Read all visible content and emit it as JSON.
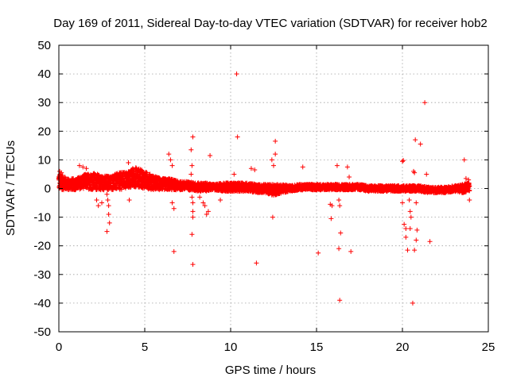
{
  "chart_data": {
    "type": "scatter",
    "title": "Day 169 of 2011, Sidereal Day-to-day VTEC variation (SDTVAR) for receiver hob2",
    "xlabel": "GPS time / hours",
    "ylabel": "SDTVAR / TECUs",
    "xlim": [
      0,
      25
    ],
    "ylim": [
      -50,
      50
    ],
    "xticks": [
      0,
      5,
      10,
      15,
      20,
      25
    ],
    "yticks": [
      -50,
      -40,
      -30,
      -20,
      -10,
      0,
      10,
      20,
      30,
      40,
      50
    ],
    "grid": true,
    "marker": "+",
    "color": "#ff0000",
    "band": {
      "x": [
        0,
        0.5,
        1,
        1.5,
        2,
        2.5,
        3,
        3.5,
        4,
        4.5,
        5,
        5.5,
        6,
        6.5,
        7,
        7.5,
        8,
        8.5,
        9,
        9.5,
        10,
        10.5,
        11,
        11.5,
        12,
        12.5,
        13,
        13.5,
        14,
        14.5,
        15,
        15.5,
        16,
        16.5,
        17,
        17.5,
        18,
        18.5,
        19,
        19.5,
        20,
        20.5,
        21,
        21.5,
        22,
        22.5,
        23,
        23.5,
        23.9
      ],
      "center": [
        2.5,
        1.5,
        1.5,
        2.5,
        2.5,
        2,
        2,
        2.5,
        3,
        4,
        3,
        2,
        1.5,
        1.5,
        1,
        1,
        0.5,
        0.5,
        0.5,
        0.5,
        0.5,
        0.5,
        0.5,
        0,
        0,
        -0.5,
        0,
        0,
        0.5,
        0.5,
        0.5,
        0.5,
        0.5,
        0.5,
        0.5,
        0.5,
        0,
        0,
        0,
        0,
        0,
        0,
        0,
        -0.5,
        -0.5,
        -0.5,
        0,
        0,
        0.5
      ],
      "halfwidth": [
        3,
        2,
        2,
        2.5,
        3,
        2.5,
        2.5,
        3,
        3,
        3.5,
        3,
        2.5,
        2,
        2,
        1.5,
        1.5,
        1.5,
        1.5,
        1,
        1.5,
        1.5,
        1.5,
        1.5,
        1.5,
        1.5,
        2,
        1.5,
        1,
        1,
        1,
        1,
        1,
        1,
        1,
        1,
        1,
        1,
        1,
        1,
        1,
        1,
        1,
        1,
        1,
        1,
        1,
        1,
        1.5,
        1.5
      ]
    },
    "outliers": [
      [
        0.05,
        6
      ],
      [
        0.1,
        4.5
      ],
      [
        0.15,
        5.5
      ],
      [
        1.2,
        8
      ],
      [
        1.4,
        7.5
      ],
      [
        1.6,
        7
      ],
      [
        2.2,
        -4
      ],
      [
        2.3,
        -6
      ],
      [
        2.5,
        -5
      ],
      [
        2.8,
        -2
      ],
      [
        2.85,
        -4
      ],
      [
        2.9,
        -6
      ],
      [
        2.9,
        -9
      ],
      [
        2.95,
        -12
      ],
      [
        2.8,
        -15
      ],
      [
        4.05,
        9
      ],
      [
        4.1,
        -4
      ],
      [
        4.3,
        7
      ],
      [
        6.4,
        12
      ],
      [
        6.5,
        10
      ],
      [
        6.6,
        8
      ],
      [
        6.6,
        -5
      ],
      [
        6.7,
        -7
      ],
      [
        6.7,
        -22
      ],
      [
        7.7,
        13.5
      ],
      [
        7.75,
        8
      ],
      [
        7.8,
        18
      ],
      [
        7.7,
        5
      ],
      [
        7.75,
        -3
      ],
      [
        7.8,
        -5
      ],
      [
        7.8,
        -8
      ],
      [
        7.8,
        -10
      ],
      [
        7.75,
        -16
      ],
      [
        7.8,
        -26.5
      ],
      [
        8.2,
        -3
      ],
      [
        8.4,
        -5
      ],
      [
        8.5,
        -6
      ],
      [
        8.7,
        -8
      ],
      [
        8.8,
        11.5
      ],
      [
        8.6,
        -9
      ],
      [
        9.4,
        -4
      ],
      [
        10.2,
        5
      ],
      [
        10.35,
        40
      ],
      [
        10.4,
        18
      ],
      [
        11.2,
        7
      ],
      [
        11.4,
        6.5
      ],
      [
        11.5,
        -26
      ],
      [
        12.4,
        10
      ],
      [
        12.5,
        8
      ],
      [
        12.6,
        12
      ],
      [
        12.6,
        16.5
      ],
      [
        12.45,
        -10
      ],
      [
        14.2,
        7.5
      ],
      [
        15.1,
        -22.5
      ],
      [
        15.8,
        -5.5
      ],
      [
        15.9,
        -6
      ],
      [
        15.85,
        -10.5
      ],
      [
        16.2,
        8
      ],
      [
        16.3,
        -4
      ],
      [
        16.35,
        -6
      ],
      [
        16.3,
        -21
      ],
      [
        16.4,
        -15.5
      ],
      [
        16.35,
        -39
      ],
      [
        16.8,
        7.5
      ],
      [
        16.9,
        4
      ],
      [
        17.0,
        -22
      ],
      [
        20.0,
        9.5
      ],
      [
        20.05,
        9.8
      ],
      [
        20.0,
        -5
      ],
      [
        20.1,
        -12.5
      ],
      [
        20.2,
        -14
      ],
      [
        20.2,
        -17
      ],
      [
        20.3,
        -21.5
      ],
      [
        20.4,
        -4
      ],
      [
        20.45,
        -8
      ],
      [
        20.5,
        -10
      ],
      [
        20.45,
        -14
      ],
      [
        20.6,
        -40
      ],
      [
        20.65,
        6
      ],
      [
        20.7,
        5.5
      ],
      [
        20.75,
        17
      ],
      [
        20.7,
        -21.5
      ],
      [
        20.8,
        -18
      ],
      [
        20.85,
        -14.5
      ],
      [
        20.8,
        -5
      ],
      [
        21.05,
        15.5
      ],
      [
        21.3,
        30
      ],
      [
        21.4,
        5
      ],
      [
        21.6,
        -18.5
      ],
      [
        23.6,
        10
      ],
      [
        23.7,
        3.5
      ],
      [
        23.9,
        -4
      ],
      [
        23.85,
        3
      ]
    ]
  }
}
